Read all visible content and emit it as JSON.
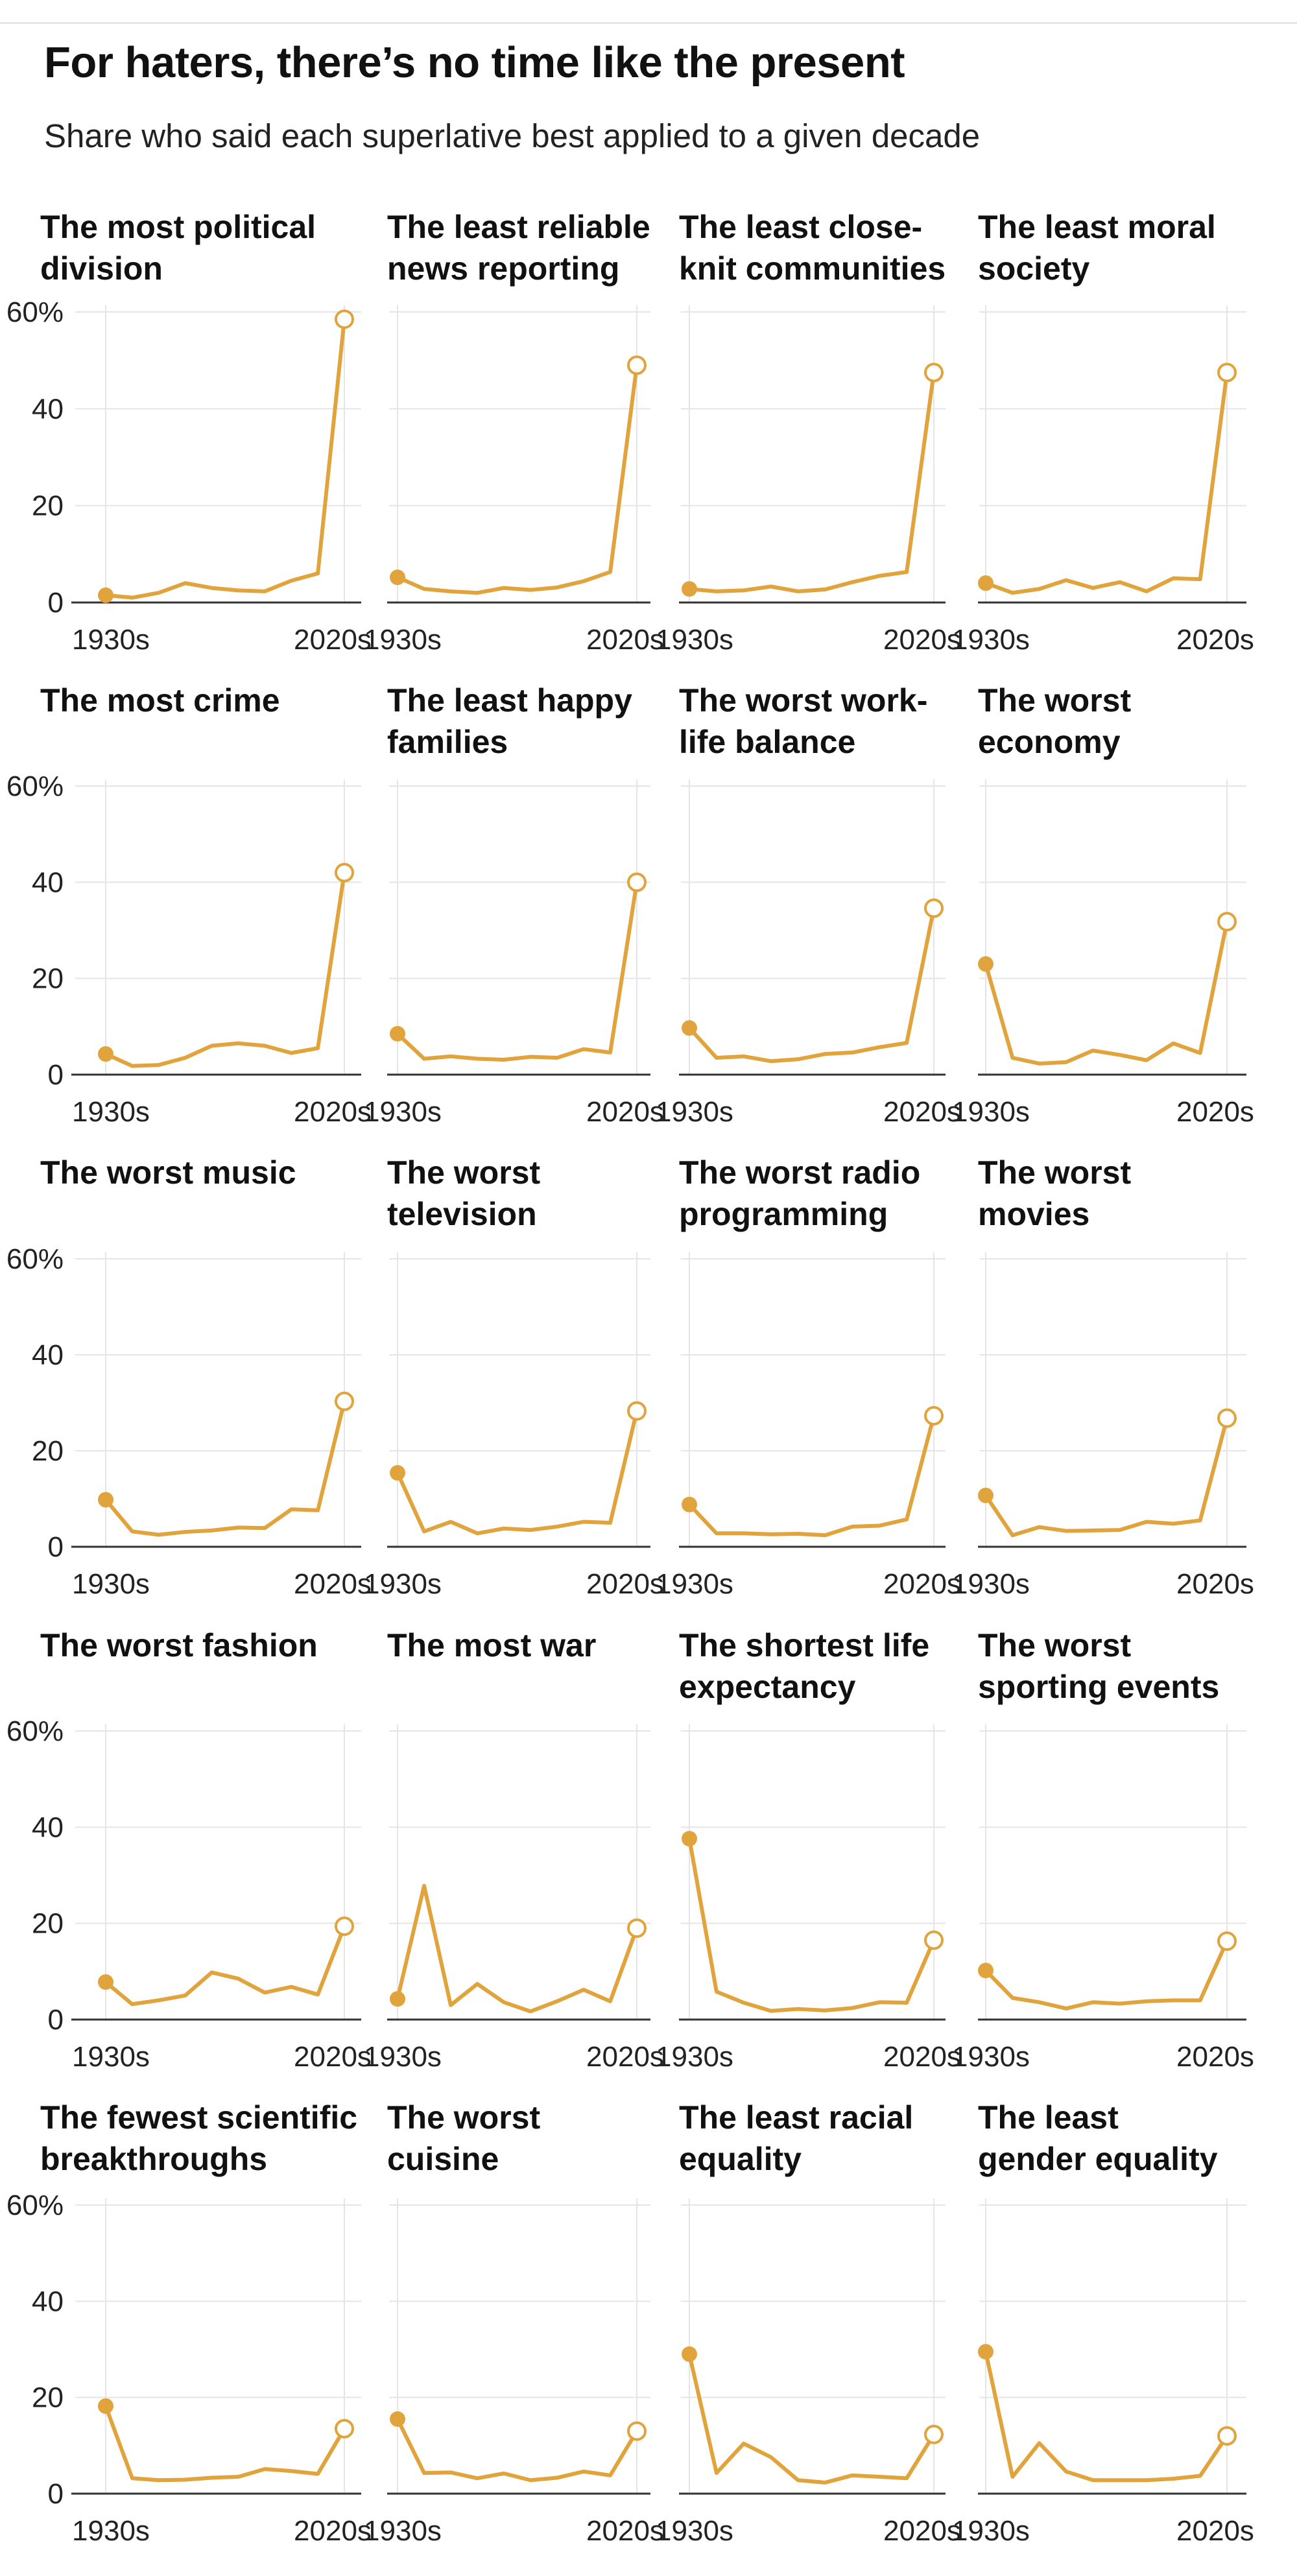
{
  "title": "For haters, there’s no time like the present",
  "subtitle": "Share who said each superlative best applied to a given decade",
  "colors": {
    "line": "#e1a43c",
    "grid": "#e5e5e5",
    "axis": "#333333",
    "text": "#111111"
  },
  "chart_data": {
    "type": "line",
    "layout": "small-multiples",
    "x": [
      "1930s",
      "1940s",
      "1950s",
      "1960s",
      "1970s",
      "1980s",
      "1990s",
      "2000s",
      "2010s",
      "2020s"
    ],
    "x_tick_labels": [
      "1930s",
      "2020s"
    ],
    "y_ticks": [
      "0",
      "20",
      "40",
      "60%"
    ],
    "ylim": [
      0,
      60
    ],
    "marker_first": "filled-circle",
    "marker_last": "open-circle",
    "panels": [
      {
        "title": "The most political\ndivision",
        "values": [
          1.5,
          1,
          2,
          4,
          3,
          2.5,
          2.3,
          4.5,
          6,
          58.5
        ]
      },
      {
        "title": "The least reliable\nnews reporting",
        "values": [
          5.2,
          2.8,
          2.3,
          2,
          3,
          2.6,
          3.1,
          4.4,
          6.3,
          49
        ]
      },
      {
        "title": "The least close-\nknit communities",
        "values": [
          2.8,
          2.3,
          2.5,
          3.3,
          2.3,
          2.7,
          4.2,
          5.5,
          6.3,
          47.5
        ]
      },
      {
        "title": "The least moral\nsociety",
        "values": [
          4,
          2,
          2.8,
          4.6,
          3,
          4.2,
          2.3,
          5,
          4.8,
          47.5
        ]
      },
      {
        "title": "The most crime",
        "values": [
          4.3,
          1.8,
          2,
          3.5,
          6,
          6.5,
          6,
          4.5,
          5.5,
          42
        ]
      },
      {
        "title": "The least happy\nfamilies",
        "values": [
          8.5,
          3.3,
          3.8,
          3.3,
          3.1,
          3.7,
          3.5,
          5.3,
          4.6,
          40
        ]
      },
      {
        "title": "The worst work-\nlife balance",
        "values": [
          9.7,
          3.5,
          3.8,
          2.8,
          3.2,
          4.3,
          4.6,
          5.7,
          6.6,
          34.6
        ]
      },
      {
        "title": "The worst\neconomy",
        "values": [
          23,
          3.5,
          2.3,
          2.6,
          5,
          4.1,
          3,
          6.5,
          4.5,
          31.8
        ]
      },
      {
        "title": "The worst music",
        "values": [
          9.8,
          3.2,
          2.5,
          3.1,
          3.4,
          4,
          3.9,
          7.8,
          7.6,
          30.3
        ]
      },
      {
        "title": "The worst\ntelevision",
        "values": [
          15.4,
          3.2,
          5.2,
          2.8,
          3.8,
          3.5,
          4.2,
          5.2,
          5,
          28.3
        ]
      },
      {
        "title": "The worst radio\nprogramming",
        "values": [
          8.8,
          2.8,
          2.8,
          2.6,
          2.7,
          2.4,
          4.2,
          4.4,
          5.7,
          27.3
        ]
      },
      {
        "title": "The worst\nmovies",
        "values": [
          10.7,
          2.4,
          4.1,
          3.3,
          3.4,
          3.5,
          5.2,
          4.8,
          5.5,
          26.8
        ]
      },
      {
        "title": "The worst fashion",
        "values": [
          7.8,
          3.2,
          4,
          5,
          9.8,
          8.5,
          5.6,
          6.8,
          5.2,
          19.4
        ]
      },
      {
        "title": "The most war",
        "values": [
          4.3,
          27.8,
          3,
          7.4,
          3.6,
          1.7,
          3.8,
          6.2,
          3.8,
          19
        ]
      },
      {
        "title": "The shortest life\nexpectancy",
        "values": [
          37.6,
          5.8,
          3.5,
          1.8,
          2.2,
          1.9,
          2.4,
          3.6,
          3.5,
          16.5
        ]
      },
      {
        "title": "The worst\nsporting events",
        "values": [
          10.2,
          4.5,
          3.6,
          2.3,
          3.6,
          3.3,
          3.8,
          4,
          4,
          16.3
        ]
      },
      {
        "title": "The fewest scientific\nbreakthroughs",
        "values": [
          18.2,
          3.2,
          2.8,
          2.9,
          3.3,
          3.5,
          5.1,
          4.7,
          4.1,
          13.5
        ]
      },
      {
        "title": "The worst\ncuisine",
        "values": [
          15.5,
          4.3,
          4.4,
          3.2,
          4.2,
          2.8,
          3.3,
          4.6,
          3.8,
          13
        ]
      },
      {
        "title": "The least racial\nequality",
        "values": [
          29,
          4.3,
          10.4,
          7.6,
          2.8,
          2.3,
          3.8,
          3.5,
          3.2,
          12.3
        ]
      },
      {
        "title": "The least\ngender equality",
        "values": [
          29.5,
          3.5,
          10.5,
          4.6,
          2.8,
          2.8,
          2.8,
          3.1,
          3.7,
          12
        ]
      }
    ]
  }
}
